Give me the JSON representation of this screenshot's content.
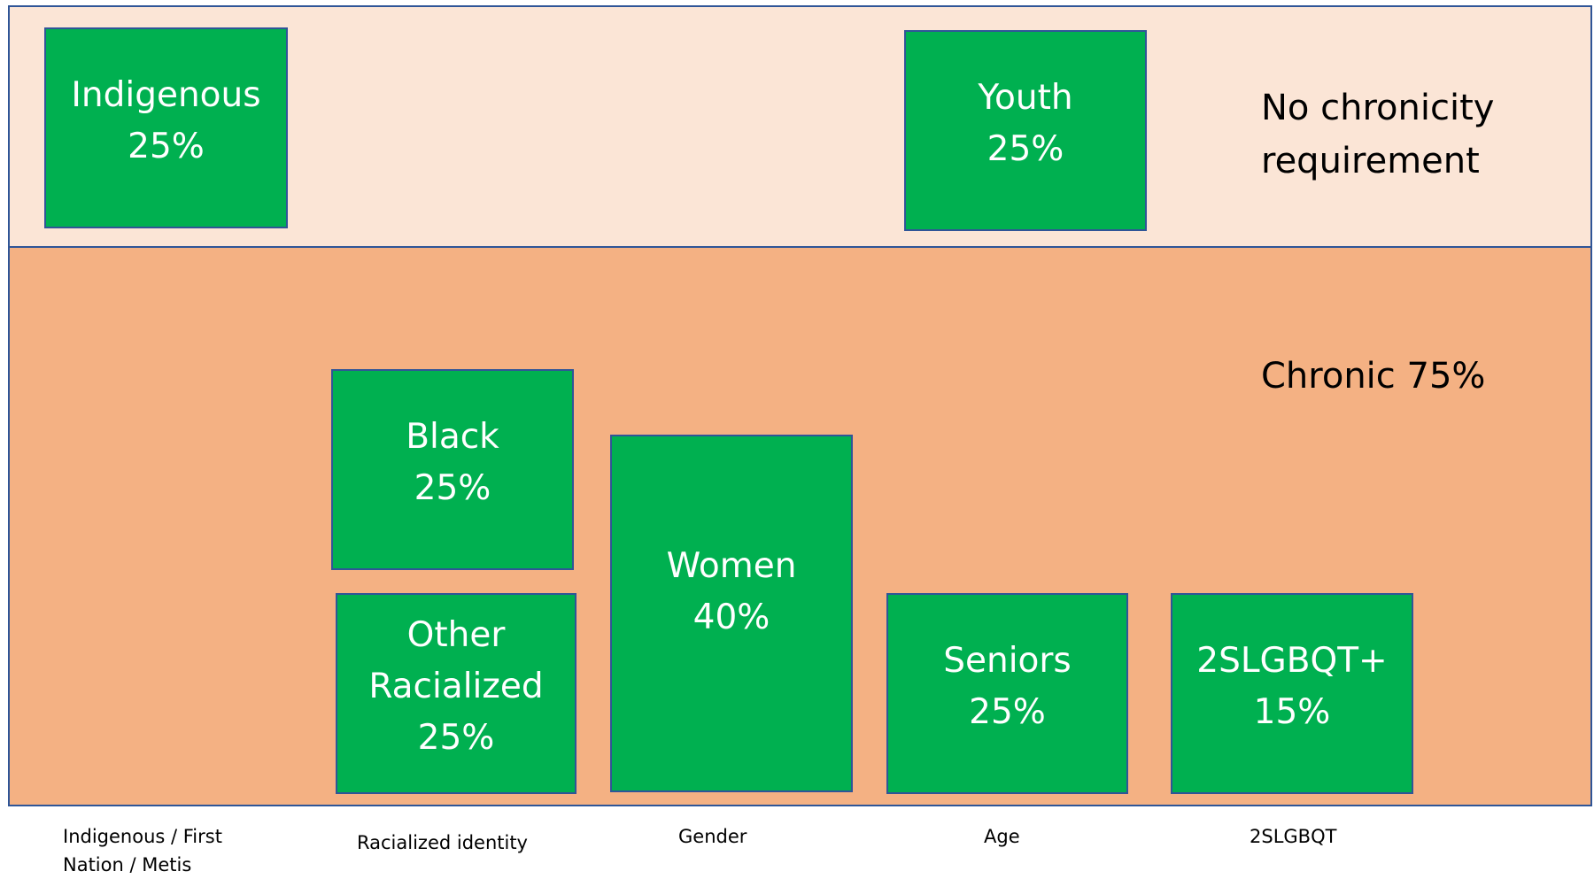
{
  "bands": {
    "top": {
      "label": [
        "No chronicity",
        "requirement"
      ]
    },
    "bottom": {
      "label": [
        "Chronic 75%"
      ]
    }
  },
  "boxes": [
    {
      "lines": [
        "Indigenous",
        "25%"
      ]
    },
    {
      "lines": [
        "Youth",
        "25%"
      ]
    },
    {
      "lines": [
        "Black",
        "25%"
      ]
    },
    {
      "lines": [
        "Other",
        "Racialized",
        "25%"
      ]
    },
    {
      "lines": [
        "Women",
        "40%"
      ]
    },
    {
      "lines": [
        "Seniors",
        "25%"
      ]
    },
    {
      "lines": [
        "2SLGBQT+",
        "15%"
      ]
    }
  ],
  "columns": [
    {
      "lines": [
        "Indigenous / First",
        "Nation / Metis"
      ]
    },
    {
      "lines": [
        "Racialized identity"
      ]
    },
    {
      "lines": [
        "Gender"
      ]
    },
    {
      "lines": [
        "Age"
      ]
    },
    {
      "lines": [
        "2SLGBQT"
      ]
    }
  ]
}
